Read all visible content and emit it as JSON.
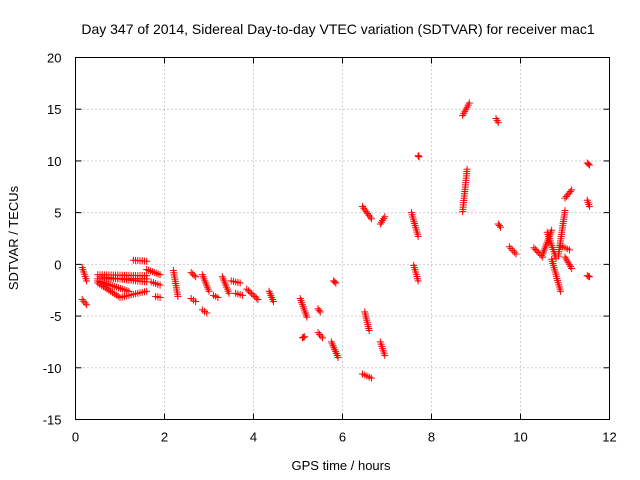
{
  "chart_data": {
    "type": "scatter",
    "title": "Day 347 of 2014, Sidereal Day-to-day VTEC variation (SDTVAR) for receiver mac1",
    "xlabel": "GPS time / hours",
    "ylabel": "SDTVAR / TECUs",
    "xlim": [
      0,
      12
    ],
    "ylim": [
      -15,
      20
    ],
    "xticks": [
      "0",
      "2",
      "4",
      "6",
      "8",
      "10",
      "12"
    ],
    "yticks": [
      "-15",
      "-10",
      "-5",
      "0",
      "5",
      "10",
      "15",
      "20"
    ],
    "grid": true,
    "marker": "+",
    "color": "#ff0000",
    "series": [
      {
        "name": "mac1",
        "segments": [
          [
            [
              0.15,
              -0.3
            ],
            [
              0.25,
              -1.6
            ]
          ],
          [
            [
              0.15,
              -3.4
            ],
            [
              0.25,
              -3.9
            ]
          ],
          [
            [
              0.5,
              -1.0
            ],
            [
              1.6,
              -1.1
            ]
          ],
          [
            [
              0.5,
              -1.8
            ],
            [
              1.0,
              -3.2
            ]
          ],
          [
            [
              1.0,
              -3.2
            ],
            [
              1.6,
              -2.6
            ]
          ],
          [
            [
              0.5,
              -1.6
            ],
            [
              1.2,
              -2.6
            ]
          ],
          [
            [
              0.5,
              -1.4
            ],
            [
              1.6,
              -1.4
            ]
          ],
          [
            [
              0.55,
              -1.2
            ],
            [
              1.6,
              -1.7
            ]
          ],
          [
            [
              1.3,
              0.4
            ],
            [
              1.6,
              0.3
            ]
          ],
          [
            [
              1.6,
              -0.5
            ],
            [
              1.9,
              -1.0
            ]
          ],
          [
            [
              1.7,
              -1.7
            ],
            [
              1.9,
              -2.0
            ]
          ],
          [
            [
              1.8,
              -3.1
            ],
            [
              1.9,
              -3.2
            ]
          ],
          [
            [
              2.2,
              -0.6
            ],
            [
              2.3,
              -3.1
            ]
          ],
          [
            [
              2.6,
              -0.8
            ],
            [
              2.7,
              -1.2
            ]
          ],
          [
            [
              2.6,
              -3.3
            ],
            [
              2.7,
              -3.6
            ]
          ],
          [
            [
              2.85,
              -1.0
            ],
            [
              3.0,
              -2.6
            ]
          ],
          [
            [
              2.85,
              -4.4
            ],
            [
              2.95,
              -4.7
            ]
          ],
          [
            [
              3.1,
              -3.0
            ],
            [
              3.2,
              -3.2
            ]
          ],
          [
            [
              3.3,
              -1.2
            ],
            [
              3.45,
              -2.8
            ]
          ],
          [
            [
              3.5,
              -1.6
            ],
            [
              3.7,
              -1.8
            ]
          ],
          [
            [
              3.6,
              -2.8
            ],
            [
              3.75,
              -3.0
            ]
          ],
          [
            [
              3.85,
              -2.4
            ],
            [
              4.1,
              -3.4
            ]
          ],
          [
            [
              4.35,
              -2.6
            ],
            [
              4.45,
              -3.6
            ]
          ],
          [
            [
              5.05,
              -3.3
            ],
            [
              5.2,
              -5.1
            ]
          ],
          [
            [
              5.1,
              -7.1
            ],
            [
              5.15,
              -7.0
            ]
          ],
          [
            [
              5.45,
              -4.3
            ],
            [
              5.5,
              -4.6
            ]
          ],
          [
            [
              5.45,
              -6.6
            ],
            [
              5.55,
              -7.1
            ]
          ],
          [
            [
              5.75,
              -7.5
            ],
            [
              5.9,
              -9.0
            ]
          ],
          [
            [
              5.8,
              -1.6
            ],
            [
              5.85,
              -1.8
            ]
          ],
          [
            [
              6.45,
              5.6
            ],
            [
              6.65,
              4.4
            ]
          ],
          [
            [
              6.5,
              -4.6
            ],
            [
              6.6,
              -6.4
            ]
          ],
          [
            [
              6.45,
              -10.6
            ],
            [
              6.65,
              -11.0
            ]
          ],
          [
            [
              6.85,
              -7.5
            ],
            [
              6.95,
              -8.8
            ]
          ],
          [
            [
              6.85,
              3.9
            ],
            [
              6.95,
              4.6
            ]
          ],
          [
            [
              7.55,
              5.0
            ],
            [
              7.7,
              2.7
            ]
          ],
          [
            [
              7.6,
              -0.1
            ],
            [
              7.7,
              -1.6
            ]
          ],
          [
            [
              7.7,
              10.5
            ],
            [
              7.72,
              10.4
            ]
          ],
          [
            [
              8.7,
              5.1
            ],
            [
              8.8,
              9.2
            ]
          ],
          [
            [
              8.7,
              14.4
            ],
            [
              8.85,
              15.6
            ]
          ],
          [
            [
              9.45,
              14.1
            ],
            [
              9.5,
              13.7
            ]
          ],
          [
            [
              9.5,
              3.9
            ],
            [
              9.55,
              3.6
            ]
          ],
          [
            [
              9.75,
              1.7
            ],
            [
              9.9,
              1.0
            ]
          ],
          [
            [
              10.3,
              1.6
            ],
            [
              10.5,
              0.7
            ]
          ],
          [
            [
              10.5,
              1.0
            ],
            [
              10.7,
              3.3
            ]
          ],
          [
            [
              10.6,
              3.1
            ],
            [
              10.8,
              0.6
            ]
          ],
          [
            [
              10.7,
              0.5
            ],
            [
              10.9,
              -2.6
            ]
          ],
          [
            [
              10.85,
              0.8
            ],
            [
              11.0,
              5.2
            ]
          ],
          [
            [
              10.9,
              1.8
            ],
            [
              11.1,
              1.4
            ]
          ],
          [
            [
              11.0,
              6.4
            ],
            [
              11.15,
              7.2
            ]
          ],
          [
            [
              11.0,
              0.7
            ],
            [
              11.15,
              -0.4
            ]
          ],
          [
            [
              11.5,
              9.8
            ],
            [
              11.55,
              9.6
            ]
          ],
          [
            [
              11.5,
              6.2
            ],
            [
              11.55,
              5.6
            ]
          ],
          [
            [
              11.5,
              -1.1
            ],
            [
              11.55,
              -1.2
            ]
          ]
        ]
      }
    ]
  }
}
